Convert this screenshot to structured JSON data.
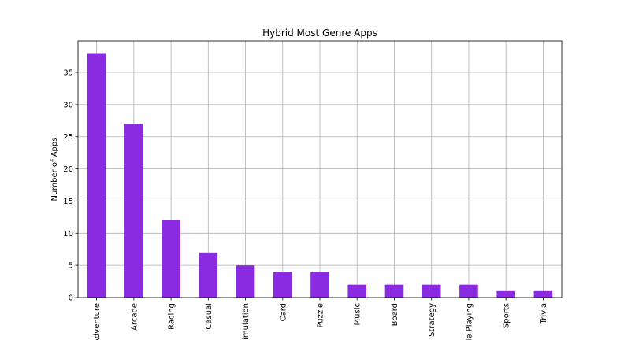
{
  "chart_data": {
    "type": "bar",
    "title": "Hybrid Most Genre Apps",
    "xlabel": "",
    "ylabel": "Number of Apps",
    "categories": [
      "Adventure",
      "Arcade",
      "Racing",
      "Casual",
      "Simulation",
      "Card",
      "Puzzle",
      "Music",
      "Board",
      "Strategy",
      "Role Playing",
      "Sports",
      "Trivia"
    ],
    "values": [
      38,
      27,
      12,
      7,
      5,
      4,
      4,
      2,
      2,
      2,
      2,
      1,
      1
    ],
    "ylim": [
      0,
      39.9
    ],
    "yticks": [
      0,
      5,
      10,
      15,
      20,
      25,
      30,
      35
    ],
    "grid": true,
    "bar_color": "#8a2be2"
  }
}
